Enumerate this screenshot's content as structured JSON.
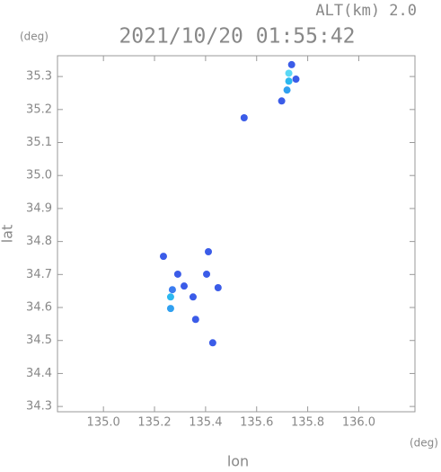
{
  "chart_data": {
    "type": "scatter",
    "title": "2021/10/20 01:55:42",
    "subtitle": "ALT(km) 2.0",
    "x_label": "lon",
    "y_label": "lat",
    "x_unit": "(deg)",
    "y_unit": "(deg)",
    "x": [
      135.737,
      135.726,
      135.719,
      135.754,
      135.698,
      135.726,
      135.551,
      135.263,
      135.263,
      135.27,
      135.316,
      135.291,
      135.404,
      135.411,
      135.361,
      135.449,
      135.428,
      135.235,
      135.351
    ],
    "values": [
      35.336,
      35.286,
      35.259,
      35.292,
      35.226,
      35.31,
      35.175,
      34.632,
      34.597,
      34.654,
      34.665,
      34.701,
      34.701,
      34.769,
      34.564,
      34.66,
      34.493,
      34.755,
      34.632
    ],
    "colors": [
      "#3b5ce8",
      "#2bb8f0",
      "#30a0f0",
      "#3b5ce8",
      "#3b5ce8",
      "#5ad8f5",
      "#3b5ce8",
      "#2bb8f0",
      "#30a0f0",
      "#3b7cf0",
      "#3b5ce8",
      "#3b5ce8",
      "#3b5ce8",
      "#3b5ce8",
      "#3b5ce8",
      "#3b5ce8",
      "#3b5ce8",
      "#3b5ce8",
      "#3b5ce8"
    ],
    "xlim": [
      134.82,
      136.22
    ],
    "ylim": [
      34.284,
      35.363
    ],
    "xticks": [
      {
        "value": 135.0,
        "label": "135.0"
      },
      135.2,
      135.4,
      135.6,
      135.8,
      {
        "value": 136.0,
        "label": "136.0"
      }
    ],
    "yticks": [
      34.3,
      34.4,
      34.5,
      34.6,
      34.7,
      34.8,
      34.9,
      {
        "value": 35.0,
        "label": "35.0"
      },
      35.1,
      35.2,
      35.3
    ],
    "grid": false
  }
}
